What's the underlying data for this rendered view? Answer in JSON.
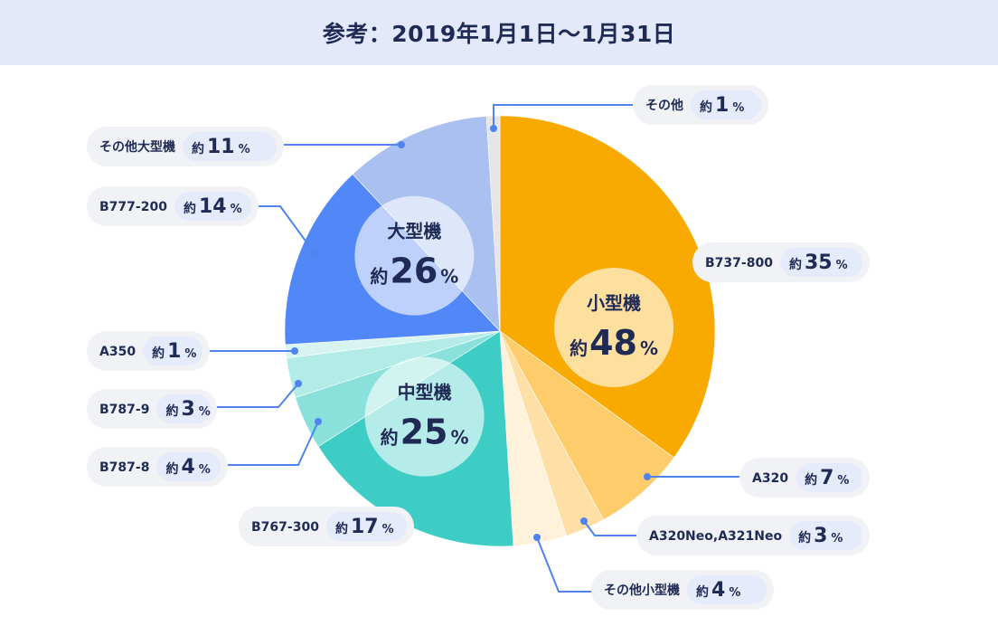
{
  "header": {
    "title": "参考：2019年1月1日〜1月31日"
  },
  "chart_data": {
    "type": "pie",
    "title": "",
    "approx_prefix": "約",
    "unit": "%",
    "colors": {
      "small": "#f9aa00",
      "medium": "#3ecdc4",
      "large": "#5287f7",
      "leader": "#4f83ee"
    },
    "groups": [
      {
        "name": "小型機",
        "value": 48
      },
      {
        "name": "中型機",
        "value": 25
      },
      {
        "name": "大型機",
        "value": 26
      }
    ],
    "slices": [
      {
        "label": "B737-800",
        "value": 35,
        "group": "小型機",
        "color": "#f9aa00"
      },
      {
        "label": "A320",
        "value": 7,
        "group": "小型機",
        "color": "#fecc6a"
      },
      {
        "label": "A320Neo,A321Neo",
        "value": 3,
        "group": "小型機",
        "color": "#fee0a6"
      },
      {
        "label": "その他小型機",
        "value": 4,
        "group": "小型機",
        "color": "#fff2db"
      },
      {
        "label": "B767-300",
        "value": 17,
        "group": "中型機",
        "color": "#3ecdc4"
      },
      {
        "label": "B787-8",
        "value": 4,
        "group": "中型機",
        "color": "#8ae1db"
      },
      {
        "label": "B787-9",
        "value": 3,
        "group": "中型機",
        "color": "#b3ebe6"
      },
      {
        "label": "A350",
        "value": 1,
        "group": "中型機",
        "color": "#d8f4f1"
      },
      {
        "label": "B777-200",
        "value": 14,
        "group": "大型機",
        "color": "#5287f7"
      },
      {
        "label": "その他大型機",
        "value": 11,
        "group": "大型機",
        "color": "#a9c0f1"
      },
      {
        "label": "その他",
        "value": 1,
        "group": "その他",
        "color": "#e6e6e6"
      }
    ]
  }
}
